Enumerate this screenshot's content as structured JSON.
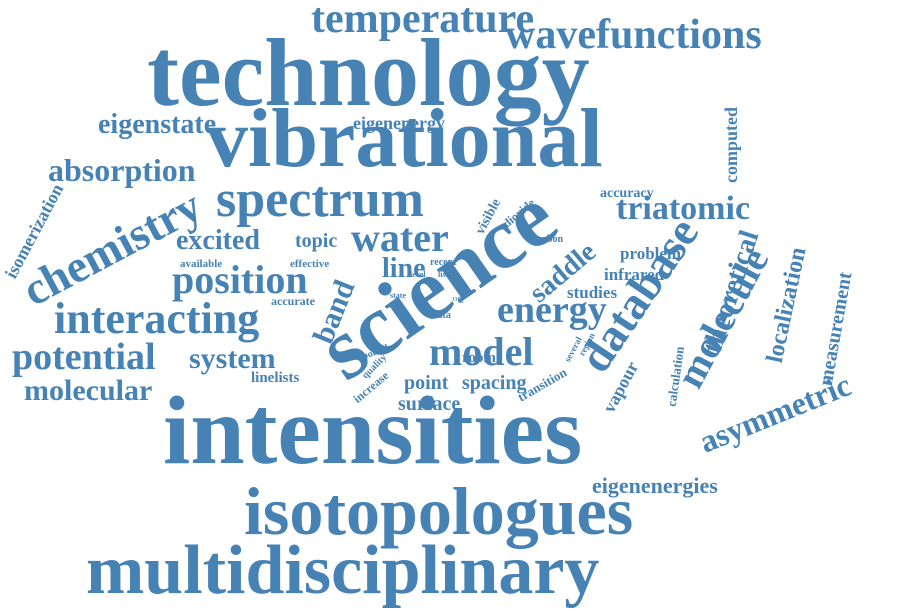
{
  "color": "#4682b4",
  "words": [
    {
      "id": "technology",
      "text": "technology"
    },
    {
      "id": "intensities",
      "text": "intensities"
    },
    {
      "id": "multidisciplinary",
      "text": "multidisciplinary"
    },
    {
      "id": "isotopologues",
      "text": "isotopologues"
    },
    {
      "id": "vibrational",
      "text": "vibrational"
    },
    {
      "id": "science",
      "text": "science"
    },
    {
      "id": "spectrum",
      "text": "spectrum"
    },
    {
      "id": "wavefunctions",
      "text": "wavefunctions"
    },
    {
      "id": "temperature",
      "text": "temperature"
    },
    {
      "id": "chemistry",
      "text": "chemistry"
    },
    {
      "id": "interacting",
      "text": "interacting"
    },
    {
      "id": "potential",
      "text": "potential"
    },
    {
      "id": "position",
      "text": "position"
    },
    {
      "id": "database",
      "text": "database"
    },
    {
      "id": "molecule",
      "text": "molecule"
    },
    {
      "id": "triatomic",
      "text": "triatomic"
    },
    {
      "id": "water",
      "text": "water"
    },
    {
      "id": "model",
      "text": "model"
    },
    {
      "id": "energy",
      "text": "energy"
    },
    {
      "id": "absorption",
      "text": "absorption"
    },
    {
      "id": "eigenstate",
      "text": "eigenstate"
    },
    {
      "id": "excited",
      "text": "excited"
    },
    {
      "id": "molecular",
      "text": "molecular"
    },
    {
      "id": "system",
      "text": "system"
    },
    {
      "id": "asymmetric",
      "text": "asymmetric"
    },
    {
      "id": "theoretical",
      "text": "theoretical"
    },
    {
      "id": "eigenenergies",
      "text": "eigenenergies"
    },
    {
      "id": "band",
      "text": "band"
    },
    {
      "id": "saddle",
      "text": "saddle"
    },
    {
      "id": "line",
      "text": "line"
    },
    {
      "id": "localization",
      "text": "localization"
    },
    {
      "id": "measurement",
      "text": "measurement"
    },
    {
      "id": "eigenenergy",
      "text": "eigenenergy"
    },
    {
      "id": "computed",
      "text": "computed"
    },
    {
      "id": "vapour",
      "text": "vapour"
    },
    {
      "id": "isomerization",
      "text": "isomerization"
    },
    {
      "id": "topic",
      "text": "topic"
    },
    {
      "id": "point",
      "text": "point"
    },
    {
      "id": "surface",
      "text": "surface"
    },
    {
      "id": "spacing",
      "text": "spacing"
    },
    {
      "id": "linelists",
      "text": "linelists"
    },
    {
      "id": "studies",
      "text": "studies"
    },
    {
      "id": "problem",
      "text": "problem"
    },
    {
      "id": "infrared",
      "text": "infrared"
    },
    {
      "id": "accuracy",
      "text": "accuracy"
    },
    {
      "id": "calculation",
      "text": "calculation"
    },
    {
      "id": "transition",
      "text": "transition"
    },
    {
      "id": "room",
      "text": "room"
    },
    {
      "id": "increase",
      "text": "increase"
    },
    {
      "id": "visible",
      "text": "visible"
    },
    {
      "id": "dioxide",
      "text": "dioxide"
    },
    {
      "id": "carbon",
      "text": "carbon"
    },
    {
      "id": "available",
      "text": "available"
    },
    {
      "id": "effective",
      "text": "effective"
    },
    {
      "id": "accurate",
      "text": "accurate"
    },
    {
      "id": "bound",
      "text": "bound"
    },
    {
      "id": "quality",
      "text": "quality"
    },
    {
      "id": "several",
      "text": "several"
    },
    {
      "id": "region",
      "text": "region"
    },
    {
      "id": "recent",
      "text": "recent"
    },
    {
      "id": "level",
      "text": "level"
    },
    {
      "id": "list",
      "text": "list"
    },
    {
      "id": "state",
      "text": "state"
    },
    {
      "id": "data",
      "text": "data"
    },
    {
      "id": "c13",
      "text": "¹³C"
    }
  ]
}
